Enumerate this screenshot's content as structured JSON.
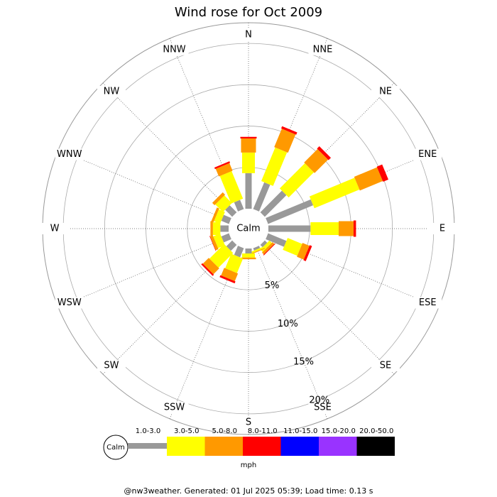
{
  "chart_data": {
    "type": "wind-rose",
    "title": "Wind rose for Oct 2009",
    "calm_label": "Calm",
    "units": "mph",
    "footer": "@nw3weather. Generated: 01 Jul 2025 05:39; Load time: 0.13 s",
    "categories": [
      "N",
      "NNE",
      "NE",
      "ENE",
      "E",
      "ESE",
      "SE",
      "SSE",
      "S",
      "SSW",
      "SW",
      "WSW",
      "W",
      "WNW",
      "NW",
      "NNW"
    ],
    "ylim": [
      0,
      22.5
    ],
    "yticks": [
      {
        "value": 5,
        "label": "5%"
      },
      {
        "value": 10,
        "label": "10%"
      },
      {
        "value": 15,
        "label": "15%"
      },
      {
        "value": 20,
        "label": "20%"
      }
    ],
    "grid": true,
    "series": [
      {
        "name": "1.0-3.0",
        "color": "#999999",
        "values": [
          4.3,
          3.5,
          3.7,
          5.9,
          5.1,
          2.4,
          0.4,
          0.3,
          0.6,
          1.2,
          1.0,
          1.0,
          1.0,
          1.0,
          1.2,
          1.2
        ]
      },
      {
        "name": "3.0-5.0",
        "color": "#ffff00",
        "values": [
          2.5,
          4.4,
          4.3,
          5.9,
          3.4,
          1.9,
          0.4,
          0.2,
          0.5,
          1.9,
          2.5,
          0.9,
          0.9,
          0.8,
          1.3,
          3.6
        ]
      },
      {
        "name": "5.0-8.0",
        "color": "#ff9900",
        "values": [
          1.7,
          2.4,
          2.3,
          3.0,
          1.8,
          0.9,
          0.3,
          0.1,
          0.2,
          1.0,
          1.0,
          0.35,
          0.3,
          0.3,
          0.4,
          1.0
        ]
      },
      {
        "name": "8.0-11.0",
        "color": "#ff0000",
        "values": [
          0.2,
          0.3,
          0.4,
          0.7,
          0.3,
          0.3,
          0.1,
          0,
          0,
          0.25,
          0.2,
          0.05,
          0,
          0,
          0,
          0.2
        ]
      },
      {
        "name": "11.0-15.0",
        "color": "#0000ff",
        "values": [
          0,
          0,
          0,
          0,
          0,
          0,
          0,
          0,
          0,
          0,
          0,
          0,
          0,
          0,
          0,
          0
        ]
      },
      {
        "name": "15.0-20.0",
        "color": "#9933ff",
        "values": [
          0,
          0,
          0,
          0,
          0,
          0,
          0,
          0,
          0,
          0,
          0,
          0,
          0,
          0,
          0,
          0
        ]
      },
      {
        "name": "20.0-50.0",
        "color": "#000000",
        "values": [
          0,
          0,
          0,
          0,
          0,
          0,
          0,
          0,
          0,
          0,
          0,
          0,
          0,
          0,
          0,
          0
        ]
      }
    ]
  }
}
